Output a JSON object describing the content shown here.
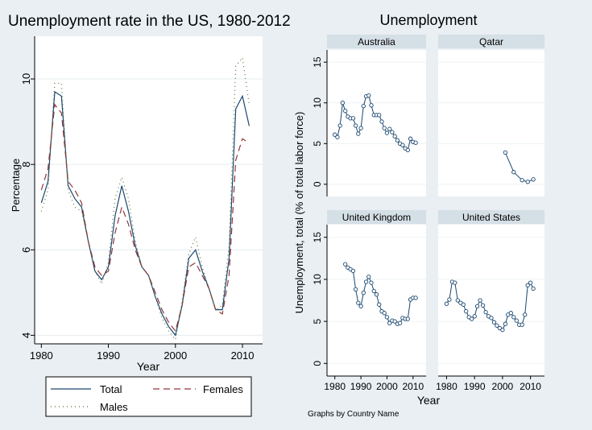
{
  "chart_data": [
    {
      "type": "line",
      "title": "Unemployment rate in the US, 1980-2012",
      "xlabel": "Year",
      "ylabel": "Percentage",
      "xlim": [
        1979,
        2013
      ],
      "ylim": [
        3.8,
        11.0
      ],
      "xticks": [
        1980,
        1990,
        2000,
        2010
      ],
      "yticks": [
        4,
        6,
        8,
        10
      ],
      "grid": true,
      "legend_position": "bottom",
      "series": [
        {
          "name": "Total",
          "color": "#1a476f",
          "dash": "solid",
          "x": [
            1980,
            1981,
            1982,
            1983,
            1984,
            1985,
            1986,
            1987,
            1988,
            1989,
            1990,
            1991,
            1992,
            1993,
            1994,
            1995,
            1996,
            1997,
            1998,
            1999,
            2000,
            2001,
            2002,
            2003,
            2004,
            2005,
            2006,
            2007,
            2008,
            2009,
            2010,
            2011
          ],
          "values": [
            7.1,
            7.6,
            9.7,
            9.6,
            7.5,
            7.2,
            7.0,
            6.2,
            5.5,
            5.3,
            5.6,
            6.8,
            7.5,
            6.9,
            6.1,
            5.6,
            5.4,
            4.9,
            4.5,
            4.2,
            4.0,
            4.7,
            5.8,
            6.0,
            5.5,
            5.1,
            4.6,
            4.6,
            5.8,
            9.3,
            9.6,
            8.9
          ]
        },
        {
          "name": "Females",
          "color": "#90353b",
          "dash": "dash",
          "x": [
            1980,
            1981,
            1982,
            1983,
            1984,
            1985,
            1986,
            1987,
            1988,
            1989,
            1990,
            1991,
            1992,
            1993,
            1994,
            1995,
            1996,
            1997,
            1998,
            1999,
            2000,
            2001,
            2002,
            2003,
            2004,
            2005,
            2006,
            2007,
            2008,
            2009,
            2010,
            2011
          ],
          "values": [
            7.4,
            7.9,
            9.4,
            9.2,
            7.6,
            7.4,
            7.1,
            6.2,
            5.6,
            5.4,
            5.5,
            6.4,
            7.0,
            6.6,
            6.0,
            5.6,
            5.4,
            5.0,
            4.6,
            4.3,
            4.1,
            4.7,
            5.6,
            5.7,
            5.4,
            5.1,
            4.6,
            4.5,
            5.4,
            8.1,
            8.6,
            8.5
          ]
        },
        {
          "name": "Males",
          "color": "#55752f",
          "dash": "dot",
          "x": [
            1980,
            1981,
            1982,
            1983,
            1984,
            1985,
            1986,
            1987,
            1988,
            1989,
            1990,
            1991,
            1992,
            1993,
            1994,
            1995,
            1996,
            1997,
            1998,
            1999,
            2000,
            2001,
            2002,
            2003,
            2004,
            2005,
            2006,
            2007,
            2008,
            2009,
            2010,
            2011
          ],
          "values": [
            6.9,
            7.4,
            9.9,
            9.9,
            7.4,
            7.0,
            6.9,
            6.2,
            5.5,
            5.2,
            5.7,
            7.2,
            7.7,
            7.2,
            6.2,
            5.6,
            5.4,
            4.9,
            4.4,
            4.1,
            3.9,
            4.8,
            5.9,
            6.3,
            5.6,
            5.1,
            4.6,
            4.7,
            6.1,
            10.3,
            10.5,
            9.4
          ]
        }
      ]
    },
    {
      "type": "line",
      "title": "Unemployment",
      "xlabel": "Year",
      "ylabel": "Unemployment, total (% of total labor force)",
      "xlim": [
        1977,
        2015
      ],
      "ylim": [
        -1.5,
        16.5
      ],
      "xticks": [
        1980,
        1990,
        2000,
        2010
      ],
      "yticks": [
        0,
        5,
        10,
        15
      ],
      "note": "Graphs by Country Name",
      "line_color": "#1a476f",
      "panels": [
        {
          "name": "Australia",
          "x": [
            1980,
            1981,
            1982,
            1983,
            1984,
            1985,
            1986,
            1987,
            1988,
            1989,
            1990,
            1991,
            1992,
            1993,
            1994,
            1995,
            1996,
            1997,
            1998,
            1999,
            2000,
            2001,
            2002,
            2003,
            2004,
            2005,
            2006,
            2007,
            2008,
            2009,
            2010,
            2011
          ],
          "values": [
            6.1,
            5.8,
            7.2,
            10.0,
            9.0,
            8.3,
            8.1,
            8.1,
            7.2,
            6.2,
            6.9,
            9.6,
            10.8,
            10.9,
            9.7,
            8.5,
            8.5,
            8.5,
            7.7,
            6.9,
            6.3,
            6.8,
            6.4,
            5.9,
            5.4,
            5.0,
            4.8,
            4.4,
            4.2,
            5.6,
            5.2,
            5.1
          ]
        },
        {
          "name": "Qatar",
          "x": [
            2001,
            2004,
            2007,
            2009,
            2011
          ],
          "values": [
            3.9,
            1.5,
            0.5,
            0.3,
            0.6
          ]
        },
        {
          "name": "United Kingdom",
          "x": [
            1984,
            1985,
            1986,
            1987,
            1988,
            1989,
            1990,
            1991,
            1992,
            1993,
            1994,
            1995,
            1996,
            1997,
            1998,
            1999,
            2000,
            2001,
            2002,
            2003,
            2004,
            2005,
            2006,
            2007,
            2008,
            2009,
            2010,
            2011
          ],
          "values": [
            11.8,
            11.4,
            11.2,
            11.0,
            8.8,
            7.2,
            6.8,
            8.4,
            9.7,
            10.3,
            9.6,
            8.6,
            8.2,
            7.0,
            6.2,
            6.0,
            5.5,
            4.8,
            5.1,
            5.0,
            4.7,
            4.8,
            5.4,
            5.3,
            5.3,
            7.6,
            7.8,
            7.8
          ]
        },
        {
          "name": "United States",
          "x": [
            1980,
            1981,
            1982,
            1983,
            1984,
            1985,
            1986,
            1987,
            1988,
            1989,
            1990,
            1991,
            1992,
            1993,
            1994,
            1995,
            1996,
            1997,
            1998,
            1999,
            2000,
            2001,
            2002,
            2003,
            2004,
            2005,
            2006,
            2007,
            2008,
            2009,
            2010,
            2011
          ],
          "values": [
            7.1,
            7.6,
            9.7,
            9.6,
            7.5,
            7.2,
            7.0,
            6.2,
            5.5,
            5.3,
            5.6,
            6.8,
            7.5,
            6.9,
            6.1,
            5.6,
            5.4,
            4.9,
            4.5,
            4.2,
            4.0,
            4.7,
            5.8,
            6.0,
            5.5,
            5.1,
            4.6,
            4.6,
            5.8,
            9.3,
            9.6,
            8.9
          ]
        }
      ]
    }
  ]
}
